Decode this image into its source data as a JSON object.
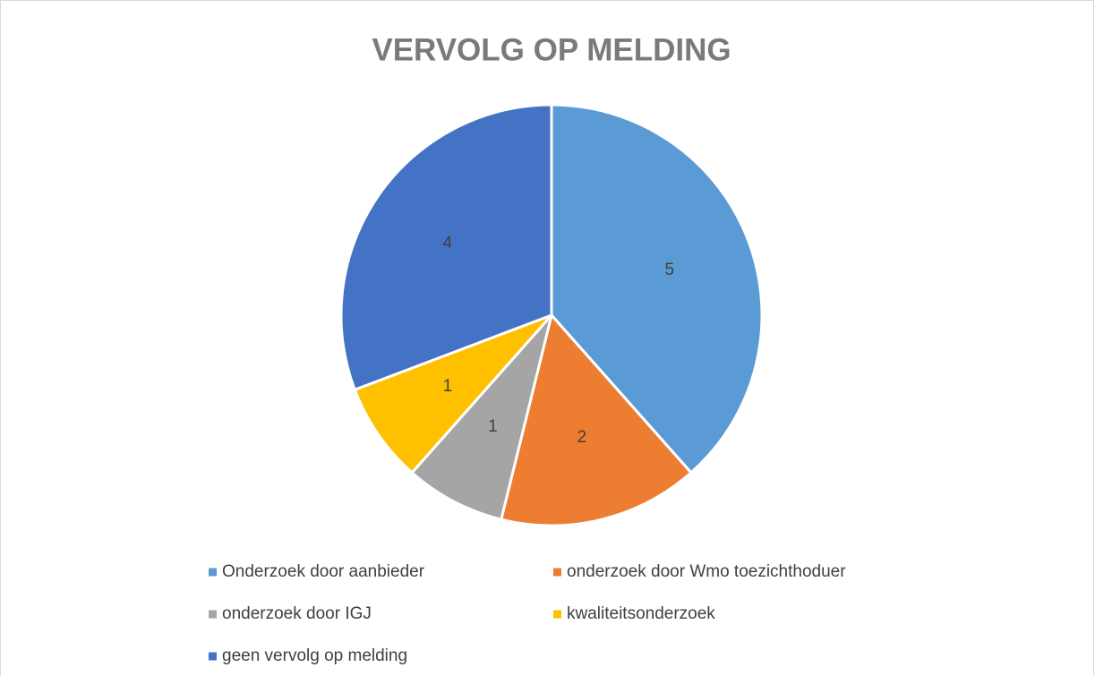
{
  "chart_data": {
    "type": "pie",
    "title": "VERVOLG OP MELDING",
    "categories": [
      "Onderzoek door aanbieder",
      "onderzoek door Wmo toezichthoduer",
      "onderzoek door IGJ",
      "kwaliteitsonderzoek",
      "geen vervolg op melding"
    ],
    "values": [
      5,
      2,
      1,
      1,
      4
    ],
    "colors": [
      "#5b9bd5",
      "#ed7d31",
      "#a5a5a5",
      "#ffc000",
      "#4472c4"
    ],
    "legend": "bottom"
  }
}
